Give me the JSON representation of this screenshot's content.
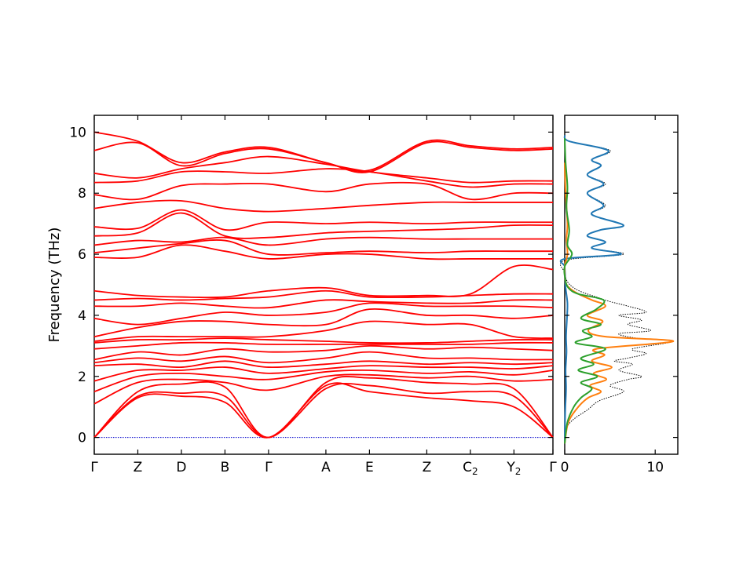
{
  "chart_data": [
    {
      "type": "line",
      "title": "",
      "xlabel": "",
      "ylabel": "Frequency (THz)",
      "ylim": [
        -0.55,
        10.55
      ],
      "yticks": [
        0,
        2,
        4,
        6,
        8,
        10
      ],
      "path_labels": [
        {
          "main": "Γ",
          "sub": "",
          "x": 0.0
        },
        {
          "main": "Z",
          "sub": "",
          "x": 0.095
        },
        {
          "main": "D",
          "sub": "",
          "x": 0.19
        },
        {
          "main": "B",
          "sub": "",
          "x": 0.285
        },
        {
          "main": "Γ",
          "sub": "",
          "x": 0.38
        },
        {
          "main": "A",
          "sub": "",
          "x": 0.505
        },
        {
          "main": "E",
          "sub": "",
          "x": 0.6
        },
        {
          "main": "Z",
          "sub": "",
          "x": 0.725
        },
        {
          "main": "C",
          "sub": "2",
          "x": 0.82
        },
        {
          "main": "Y",
          "sub": "2",
          "x": 0.915
        },
        {
          "main": "Γ",
          "sub": "",
          "x": 1.0
        }
      ],
      "grid": false,
      "series_color": "#ff0000",
      "zero_line_color": "#0000cc",
      "series": [
        {
          "x": [
            0,
            0.095,
            0.19,
            0.285,
            0.38,
            0.505,
            0.6,
            0.725,
            0.82,
            0.915,
            1.0
          ],
          "y": [
            0.0,
            1.3,
            1.35,
            1.15,
            0.0,
            1.7,
            1.5,
            1.3,
            1.2,
            1.0,
            0.0
          ]
        },
        {
          "x": [
            0,
            0.095,
            0.19,
            0.285,
            0.38,
            0.505,
            0.6,
            0.725,
            0.82,
            0.915,
            1.0
          ],
          "y": [
            0.0,
            1.35,
            1.45,
            1.35,
            0.0,
            1.6,
            1.7,
            1.45,
            1.5,
            1.35,
            0.0
          ]
        },
        {
          "x": [
            0,
            0.095,
            0.19,
            0.285,
            0.38,
            0.505,
            0.6,
            0.725,
            0.82,
            0.915,
            1.0
          ],
          "y": [
            0.0,
            1.5,
            1.75,
            1.65,
            0.0,
            1.8,
            1.95,
            1.8,
            1.75,
            1.6,
            0.0
          ]
        },
        {
          "x": [
            0,
            0.095,
            0.19,
            0.285,
            0.38,
            0.505,
            0.6,
            0.725,
            0.82,
            0.915,
            1.0
          ],
          "y": [
            1.1,
            1.8,
            1.9,
            1.8,
            1.55,
            2.0,
            2.05,
            1.95,
            2.0,
            1.85,
            1.9
          ]
        },
        {
          "x": [
            0,
            0.095,
            0.19,
            0.285,
            0.38,
            0.505,
            0.6,
            0.725,
            0.82,
            0.915,
            1.0
          ],
          "y": [
            1.5,
            2.0,
            2.1,
            2.0,
            1.9,
            2.15,
            2.2,
            2.1,
            2.15,
            2.05,
            2.2
          ]
        },
        {
          "x": [
            0,
            0.095,
            0.19,
            0.285,
            0.38,
            0.505,
            0.6,
            0.725,
            0.82,
            0.915,
            1.0
          ],
          "y": [
            1.85,
            2.2,
            2.2,
            2.3,
            2.1,
            2.25,
            2.35,
            2.3,
            2.3,
            2.25,
            2.35
          ]
        },
        {
          "x": [
            0,
            0.095,
            0.19,
            0.285,
            0.38,
            0.505,
            0.6,
            0.725,
            0.82,
            0.915,
            1.0
          ],
          "y": [
            2.35,
            2.4,
            2.3,
            2.5,
            2.3,
            2.4,
            2.5,
            2.4,
            2.45,
            2.4,
            2.45
          ]
        },
        {
          "x": [
            0,
            0.095,
            0.19,
            0.285,
            0.38,
            0.505,
            0.6,
            0.725,
            0.82,
            0.915,
            1.0
          ],
          "y": [
            2.45,
            2.6,
            2.5,
            2.65,
            2.45,
            2.6,
            2.8,
            2.6,
            2.6,
            2.55,
            2.55
          ]
        },
        {
          "x": [
            0,
            0.095,
            0.19,
            0.285,
            0.38,
            0.505,
            0.6,
            0.725,
            0.82,
            0.915,
            1.0
          ],
          "y": [
            2.55,
            2.8,
            2.7,
            2.9,
            2.8,
            2.85,
            3.0,
            2.9,
            2.95,
            2.9,
            2.85
          ]
        },
        {
          "x": [
            0,
            0.095,
            0.19,
            0.285,
            0.38,
            0.505,
            0.6,
            0.725,
            0.82,
            0.915,
            1.0
          ],
          "y": [
            2.9,
            3.0,
            3.1,
            3.1,
            3.05,
            3.05,
            3.05,
            3.05,
            3.05,
            3.1,
            3.1
          ]
        },
        {
          "x": [
            0,
            0.095,
            0.19,
            0.285,
            0.38,
            0.505,
            0.6,
            0.725,
            0.82,
            0.915,
            1.0
          ],
          "y": [
            3.1,
            3.2,
            3.2,
            3.25,
            3.2,
            3.15,
            3.1,
            3.1,
            3.15,
            3.2,
            3.2
          ]
        },
        {
          "x": [
            0,
            0.095,
            0.19,
            0.285,
            0.38,
            0.505,
            0.6,
            0.725,
            0.82,
            0.915,
            1.0
          ],
          "y": [
            3.15,
            3.3,
            3.3,
            3.3,
            3.3,
            3.5,
            3.8,
            3.7,
            3.7,
            3.3,
            3.25
          ]
        },
        {
          "x": [
            0,
            0.095,
            0.19,
            0.285,
            0.38,
            0.505,
            0.6,
            0.725,
            0.82,
            0.915,
            1.0
          ],
          "y": [
            3.3,
            3.6,
            3.8,
            3.8,
            3.7,
            3.7,
            4.2,
            4.0,
            4.0,
            3.9,
            4.0
          ]
        },
        {
          "x": [
            0,
            0.095,
            0.19,
            0.285,
            0.38,
            0.505,
            0.6,
            0.725,
            0.82,
            0.915,
            1.0
          ],
          "y": [
            3.9,
            3.7,
            3.9,
            4.1,
            4.0,
            4.1,
            4.4,
            4.3,
            4.3,
            4.3,
            4.25
          ]
        },
        {
          "x": [
            0,
            0.095,
            0.19,
            0.285,
            0.38,
            0.505,
            0.6,
            0.725,
            0.82,
            0.915,
            1.0
          ],
          "y": [
            4.3,
            4.3,
            4.4,
            4.3,
            4.25,
            4.5,
            4.45,
            4.4,
            4.4,
            4.5,
            4.5
          ]
        },
        {
          "x": [
            0,
            0.095,
            0.19,
            0.285,
            0.38,
            0.505,
            0.6,
            0.725,
            0.82,
            0.915,
            1.0
          ],
          "y": [
            4.5,
            4.55,
            4.5,
            4.55,
            4.6,
            4.8,
            4.6,
            4.6,
            4.65,
            4.7,
            4.7
          ]
        },
        {
          "x": [
            0,
            0.095,
            0.19,
            0.285,
            0.38,
            0.505,
            0.6,
            0.725,
            0.82,
            0.915,
            1.0
          ],
          "y": [
            4.8,
            4.65,
            4.6,
            4.6,
            4.8,
            4.9,
            4.65,
            4.65,
            4.7,
            5.6,
            5.5
          ]
        },
        {
          "x": [
            0,
            0.095,
            0.19,
            0.285,
            0.38,
            0.505,
            0.6,
            0.725,
            0.82,
            0.915,
            1.0
          ],
          "y": [
            5.9,
            5.9,
            6.3,
            6.1,
            5.85,
            6.0,
            6.0,
            5.85,
            5.85,
            5.85,
            5.85
          ]
        },
        {
          "x": [
            0,
            0.095,
            0.19,
            0.285,
            0.38,
            0.505,
            0.6,
            0.725,
            0.82,
            0.915,
            1.0
          ],
          "y": [
            6.05,
            6.2,
            6.35,
            6.45,
            6.0,
            6.05,
            6.1,
            6.05,
            6.1,
            6.1,
            6.1
          ]
        },
        {
          "x": [
            0,
            0.095,
            0.19,
            0.285,
            0.38,
            0.505,
            0.6,
            0.725,
            0.82,
            0.915,
            1.0
          ],
          "y": [
            6.3,
            6.45,
            6.4,
            6.55,
            6.3,
            6.5,
            6.55,
            6.5,
            6.5,
            6.5,
            6.5
          ]
        },
        {
          "x": [
            0,
            0.095,
            0.19,
            0.285,
            0.38,
            0.505,
            0.6,
            0.725,
            0.82,
            0.915,
            1.0
          ],
          "y": [
            6.6,
            6.7,
            7.35,
            6.6,
            6.55,
            6.7,
            6.75,
            6.8,
            6.85,
            6.95,
            6.95
          ]
        },
        {
          "x": [
            0,
            0.095,
            0.19,
            0.285,
            0.38,
            0.505,
            0.6,
            0.725,
            0.82,
            0.915,
            1.0
          ],
          "y": [
            6.9,
            6.85,
            7.45,
            6.8,
            7.05,
            7.0,
            7.05,
            7.0,
            7.05,
            7.05,
            7.05
          ]
        },
        {
          "x": [
            0,
            0.095,
            0.19,
            0.285,
            0.38,
            0.505,
            0.6,
            0.725,
            0.82,
            0.915,
            1.0
          ],
          "y": [
            7.5,
            7.7,
            7.75,
            7.5,
            7.4,
            7.5,
            7.6,
            7.7,
            7.7,
            7.7,
            7.7
          ]
        },
        {
          "x": [
            0,
            0.095,
            0.19,
            0.285,
            0.38,
            0.505,
            0.6,
            0.725,
            0.82,
            0.915,
            1.0
          ],
          "y": [
            7.95,
            7.8,
            8.25,
            8.3,
            8.3,
            8.05,
            8.3,
            8.3,
            7.8,
            8.0,
            8.0
          ]
        },
        {
          "x": [
            0,
            0.095,
            0.19,
            0.285,
            0.38,
            0.505,
            0.6,
            0.725,
            0.82,
            0.915,
            1.0
          ],
          "y": [
            8.35,
            8.4,
            8.7,
            8.7,
            8.65,
            8.8,
            8.7,
            8.4,
            8.2,
            8.3,
            8.3
          ]
        },
        {
          "x": [
            0,
            0.095,
            0.19,
            0.285,
            0.38,
            0.505,
            0.6,
            0.725,
            0.82,
            0.915,
            1.0
          ],
          "y": [
            8.65,
            8.5,
            8.8,
            9.0,
            9.2,
            8.95,
            8.7,
            8.5,
            8.35,
            8.4,
            8.4
          ]
        },
        {
          "x": [
            0,
            0.095,
            0.19,
            0.285,
            0.38,
            0.505,
            0.6,
            0.725,
            0.82,
            0.915,
            1.0
          ],
          "y": [
            9.4,
            9.65,
            8.9,
            9.3,
            9.45,
            9.0,
            8.7,
            9.65,
            9.5,
            9.4,
            9.45
          ]
        },
        {
          "x": [
            0,
            0.095,
            0.19,
            0.285,
            0.38,
            0.505,
            0.6,
            0.725,
            0.82,
            0.915,
            1.0
          ],
          "y": [
            10.0,
            9.7,
            9.0,
            9.35,
            9.5,
            9.0,
            8.75,
            9.7,
            9.55,
            9.45,
            9.5
          ]
        }
      ],
      "zero_line": {
        "y": 0.0
      }
    },
    {
      "type": "line",
      "title": "",
      "xlabel": "",
      "ylabel": "",
      "xlim": [
        0,
        12.5
      ],
      "xticks": [
        0,
        10
      ],
      "ylim": [
        -0.55,
        10.55
      ],
      "grid": false,
      "series": [
        {
          "color": "#000000",
          "style": "dotted",
          "x": [
            0,
            0.2,
            1.0,
            2.5,
            3.8,
            6.5,
            5.0,
            7.0,
            8.5,
            6.0,
            7.5,
            5.5,
            7.0,
            9.0,
            7.5,
            12.0,
            8.0,
            6.0,
            9.5,
            7.0,
            8.5,
            6.0,
            9.0,
            7.0,
            5.0,
            3.5,
            2.0,
            1.0,
            0.3,
            0.0,
            0.0,
            6.5,
            3.0,
            4.5,
            2.5,
            4.0,
            6.5,
            3.0,
            4.5,
            2.5,
            4.5,
            2.5,
            4.0,
            3.0,
            5.0,
            0.5,
            0.0
          ],
          "y": [
            -0.2,
            0.3,
            0.6,
            0.9,
            1.2,
            1.5,
            1.7,
            1.9,
            2.0,
            2.2,
            2.4,
            2.5,
            2.6,
            2.75,
            2.9,
            3.15,
            3.25,
            3.4,
            3.5,
            3.7,
            3.85,
            4.0,
            4.1,
            4.3,
            4.45,
            4.6,
            4.75,
            4.9,
            5.1,
            5.4,
            5.8,
            6.0,
            6.2,
            6.4,
            6.6,
            6.8,
            6.95,
            7.3,
            7.6,
            8.0,
            8.3,
            8.6,
            8.9,
            9.1,
            9.4,
            9.7,
            9.9
          ]
        },
        {
          "color": "#1f77b4",
          "style": "solid",
          "x": [
            0.0,
            0.05,
            0.15,
            0.1,
            0.2,
            0.15,
            0.25,
            0.3,
            0.1,
            0.05,
            0.0,
            0.0,
            6.2,
            3.0,
            4.5,
            2.5,
            4.0,
            6.5,
            3.0,
            4.3,
            2.5,
            4.3,
            2.5,
            4.0,
            3.0,
            4.8,
            0.5,
            0.0
          ],
          "y": [
            -0.2,
            0.8,
            1.6,
            2.2,
            2.8,
            3.3,
            3.9,
            4.4,
            4.9,
            5.3,
            5.6,
            5.85,
            6.0,
            6.2,
            6.4,
            6.6,
            6.8,
            6.95,
            7.3,
            7.6,
            8.0,
            8.3,
            8.6,
            8.9,
            9.1,
            9.4,
            9.7,
            9.9
          ]
        },
        {
          "color": "#ff7f0e",
          "style": "solid",
          "x": [
            0.0,
            0.4,
            1.5,
            2.6,
            4.0,
            2.8,
            4.6,
            3.2,
            5.2,
            3.0,
            4.4,
            3.5,
            12.0,
            4.5,
            2.6,
            4.2,
            2.5,
            4.5,
            3.0,
            1.5,
            0.5,
            0.1,
            0.0,
            0.3,
            0.2,
            0.3,
            0.1,
            0.0
          ],
          "y": [
            -0.2,
            0.5,
            1.0,
            1.3,
            1.5,
            1.7,
            1.9,
            2.1,
            2.3,
            2.5,
            2.7,
            2.9,
            3.15,
            3.3,
            3.5,
            3.8,
            4.0,
            4.3,
            4.5,
            4.7,
            4.9,
            5.1,
            5.6,
            6.0,
            6.5,
            7.0,
            8.0,
            9.0
          ]
        },
        {
          "color": "#2ca02c",
          "style": "solid",
          "x": [
            0.0,
            0.3,
            1.0,
            1.8,
            3.0,
            1.8,
            3.6,
            1.5,
            3.2,
            1.8,
            4.5,
            1.2,
            3.0,
            2.0,
            4.0,
            1.8,
            3.5,
            4.3,
            1.5,
            0.4,
            0.05,
            0.0,
            0.8,
            0.3,
            0.5,
            0.2,
            0.3,
            0.1,
            0.0
          ],
          "y": [
            -0.2,
            0.5,
            1.0,
            1.3,
            1.6,
            1.8,
            2.0,
            2.2,
            2.4,
            2.6,
            2.9,
            3.1,
            3.3,
            3.5,
            3.7,
            3.9,
            4.2,
            4.5,
            4.7,
            4.9,
            5.2,
            5.6,
            6.0,
            6.3,
            6.8,
            7.5,
            8.2,
            9.0,
            9.8
          ]
        }
      ]
    }
  ]
}
